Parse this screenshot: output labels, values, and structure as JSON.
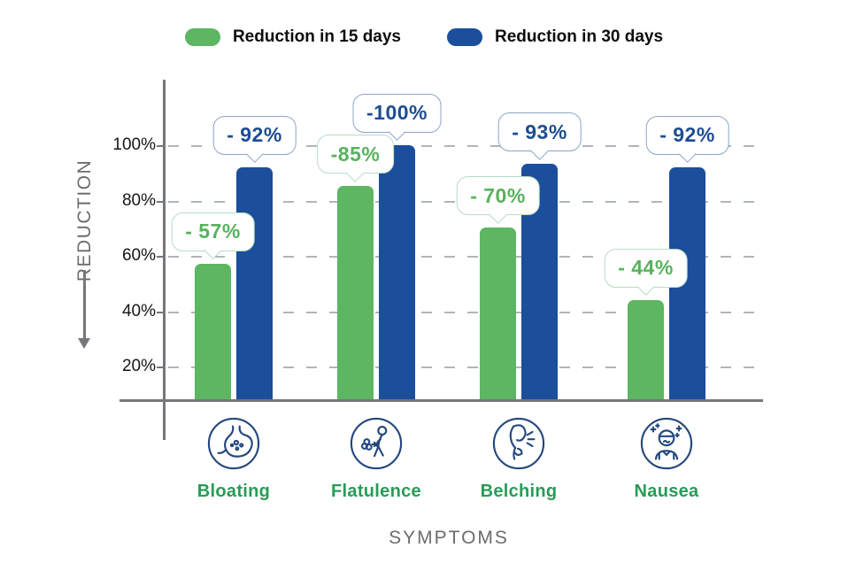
{
  "colors": {
    "green": "#5cb662",
    "blue": "#1b4e9b",
    "category_label": "#279c57",
    "axis": "#76777a",
    "muted_text": "#6b6c6e",
    "grid": "#b0b5b9",
    "icon_stroke": "#24477e",
    "tick_text": "#161616",
    "legend_text": "#0d0d0d"
  },
  "chart_data": {
    "type": "bar",
    "categories": [
      "Bloating",
      "Flatulence",
      "Belching",
      "Nausea"
    ],
    "series": [
      {
        "name": "Reduction in 15 days",
        "color": "#5cb662",
        "text_color": "#57b25e",
        "border_color": "#b7dcc4",
        "values": [
          57,
          85,
          70,
          44
        ],
        "labels": [
          "- 57%",
          "-85%",
          "- 70%",
          "- 44%"
        ]
      },
      {
        "name": "Reduction in 30 days",
        "color": "#1b4e9b",
        "text_color": "#1d4d92",
        "border_color": "#8ba6c9",
        "values": [
          92,
          100,
          93,
          92
        ],
        "labels": [
          "- 92%",
          "-100%",
          "- 93%",
          "- 92%"
        ]
      }
    ],
    "y_axis": {
      "label": "REDUCTION",
      "ticks": [
        "100%",
        "80%",
        "60%",
        "40%",
        "20%"
      ],
      "tick_values": [
        100,
        80,
        60,
        40,
        20
      ],
      "arrow": "down"
    },
    "x_axis": {
      "label": "SYMPTOMS"
    },
    "category_icons": [
      "stomach-icon",
      "flatulence-icon",
      "belching-icon",
      "nausea-icon"
    ],
    "grid": "dashed-horizontal",
    "legend_position": "top"
  }
}
